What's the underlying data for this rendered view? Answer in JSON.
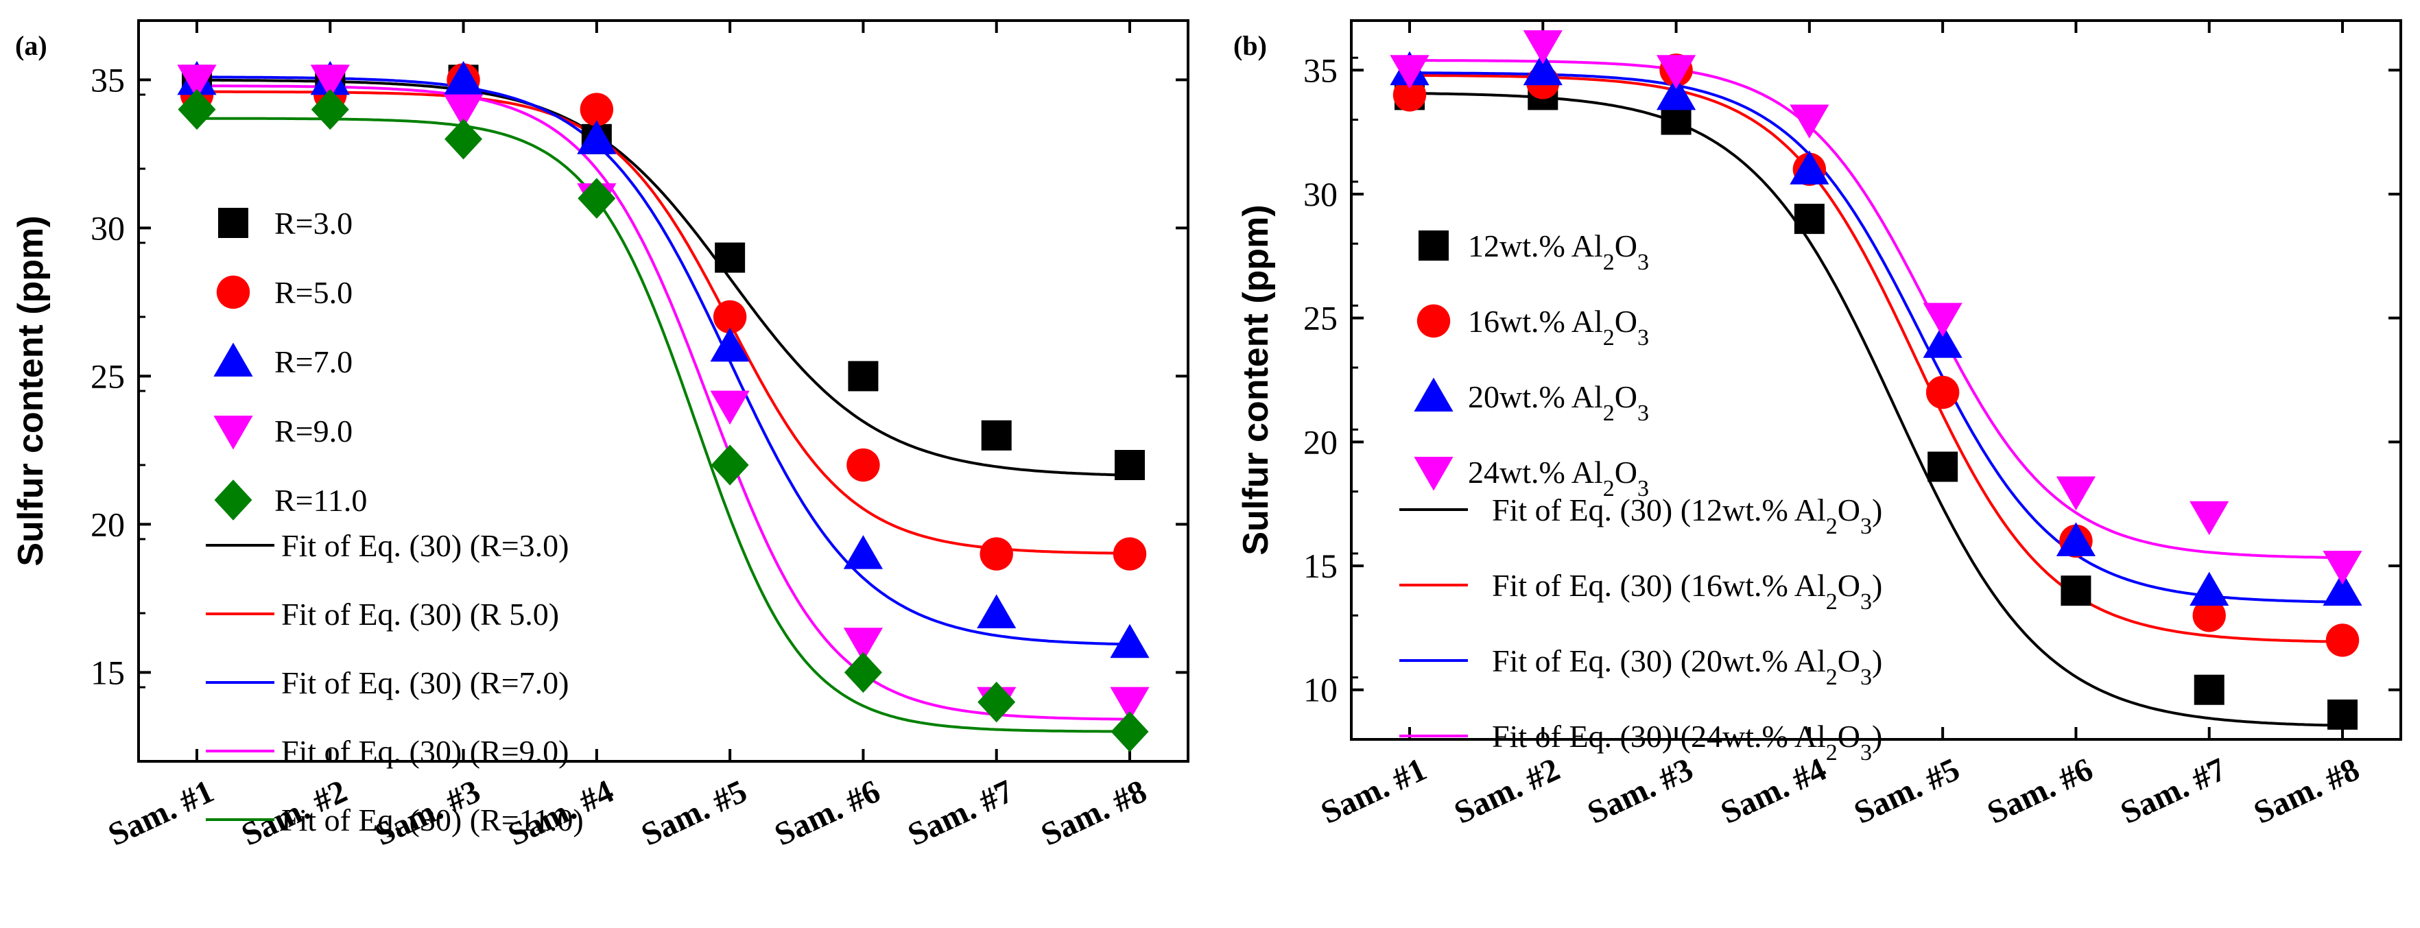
{
  "chart_data": [
    {
      "type": "scatter",
      "panel": "(a)",
      "title": "",
      "xlabel": "",
      "ylabel": "Sulfur content (ppm)",
      "categories": [
        "Sam. #1",
        "Sam. #2",
        "Sam. #3",
        "Sam. #4",
        "Sam. #5",
        "Sam. #6",
        "Sam. #7",
        "Sam. #8"
      ],
      "ylim": [
        12,
        37
      ],
      "yticks": [
        15,
        20,
        25,
        30,
        35
      ],
      "series": [
        {
          "name": "R=3.0",
          "marker": "square",
          "color": "#000000",
          "values": [
            35,
            35,
            35,
            33,
            29,
            25,
            23,
            22
          ],
          "fit_name": "Fit of Eq. (30) (R=3.0)",
          "fit": {
            "A1": 35.0,
            "A2": 21.6,
            "x0": 5.0,
            "dx": 0.55
          }
        },
        {
          "name": "R=5.0",
          "marker": "circle",
          "color": "#ff0000",
          "values": [
            34.5,
            34.5,
            35,
            34,
            27,
            22,
            19,
            19
          ],
          "fit_name": "Fit of Eq. (30) (R  5.0)",
          "fit": {
            "A1": 34.6,
            "A2": 19.0,
            "x0": 5.0,
            "dx": 0.45
          }
        },
        {
          "name": "R=7.0",
          "marker": "triangle-up",
          "color": "#0000ff",
          "values": [
            35,
            35,
            35,
            33,
            26,
            19,
            17,
            16
          ],
          "fit_name": "Fit of Eq. (30) (R=7.0)",
          "fit": {
            "A1": 35.1,
            "A2": 15.9,
            "x0": 5.0,
            "dx": 0.5
          }
        },
        {
          "name": "R=9.0",
          "marker": "triangle-down",
          "color": "#ff00ff",
          "values": [
            35,
            35,
            34,
            31,
            24,
            16,
            14,
            14
          ],
          "fit_name": "Fit of Eq. (30) (R=9.0)",
          "fit": {
            "A1": 34.8,
            "A2": 13.4,
            "x0": 4.85,
            "dx": 0.45
          }
        },
        {
          "name": "R=11.0",
          "marker": "diamond",
          "color": "#008000",
          "values": [
            34,
            34,
            33,
            31,
            22,
            15,
            14,
            13
          ],
          "fit_name": "Fit of Eq. (30) (R=11.0)",
          "fit": {
            "A1": 33.7,
            "A2": 13.0,
            "x0": 4.75,
            "dx": 0.4
          }
        }
      ]
    },
    {
      "type": "scatter",
      "panel": "(b)",
      "title": "",
      "xlabel": "",
      "ylabel": "Sulfur content (ppm)",
      "categories": [
        "Sam. #1",
        "Sam. #2",
        "Sam. #3",
        "Sam. #4",
        "Sam. #5",
        "Sam. #6",
        "Sam. #7",
        "Sam. #8"
      ],
      "ylim": [
        8,
        37
      ],
      "yticks": [
        10,
        15,
        20,
        25,
        30,
        35
      ],
      "series": [
        {
          "name": "12wt.% Al",
          "sub": "2",
          "tail": "O",
          "sub2": "3",
          "marker": "square",
          "color": "#000000",
          "values": [
            34,
            34,
            33,
            29,
            19,
            14,
            10,
            9
          ],
          "fit_name": "Fit of Eq. (30) (12wt.% Al",
          "fit_tail": ")",
          "fit": {
            "A1": 34.1,
            "A2": 8.5,
            "x0": 4.65,
            "dx": 0.55
          }
        },
        {
          "name": "16wt.% Al",
          "sub": "2",
          "tail": "O",
          "sub2": "3",
          "marker": "circle",
          "color": "#ff0000",
          "values": [
            34,
            34.5,
            35,
            31,
            22,
            16,
            13,
            12
          ],
          "fit_name": "Fit of Eq. (30) (16wt.% Al",
          "fit_tail": ")",
          "fit": {
            "A1": 34.8,
            "A2": 11.9,
            "x0": 4.8,
            "dx": 0.5
          }
        },
        {
          "name": "20wt.% Al",
          "sub": "2",
          "tail": "O",
          "sub2": "3",
          "marker": "triangle-up",
          "color": "#0000ff",
          "values": [
            35,
            35,
            34,
            31,
            24,
            16,
            14,
            14
          ],
          "fit_name": "Fit of Eq. (30) (20wt.% Al",
          "fit_tail": ")",
          "fit": {
            "A1": 34.9,
            "A2": 13.5,
            "x0": 4.85,
            "dx": 0.5
          }
        },
        {
          "name": "24wt.% Al",
          "sub": "2",
          "tail": "O",
          "sub2": "3",
          "marker": "triangle-down",
          "color": "#ff00ff",
          "values": [
            35,
            36,
            35,
            33,
            25,
            18,
            17,
            15
          ],
          "fit_name": "Fit of Eq. (30) (24wt.% Al",
          "fit_tail": ")",
          "fit": {
            "A1": 35.4,
            "A2": 15.3,
            "x0": 4.9,
            "dx": 0.48
          }
        }
      ]
    }
  ]
}
